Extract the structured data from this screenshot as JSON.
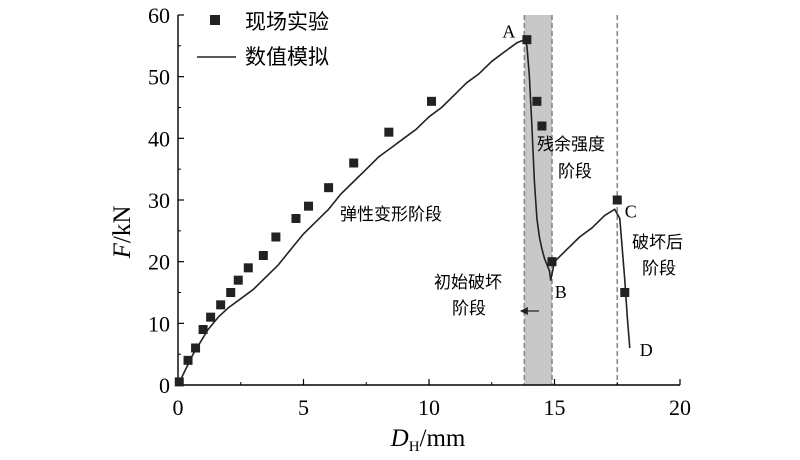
{
  "chart_data": {
    "type": "line",
    "xlabel": "D_H/mm",
    "xlabel_main": "D",
    "xlabel_sub": "H",
    "xlabel_unit": "/mm",
    "ylabel": "F/kN",
    "ylabel_italic": "F",
    "ylabel_unit": "/kN",
    "xlim": [
      0,
      20
    ],
    "ylim": [
      0,
      60
    ],
    "xticks": [
      "0",
      "5",
      "10",
      "15",
      "20"
    ],
    "yticks": [
      "0",
      "10",
      "20",
      "30",
      "40",
      "50",
      "60"
    ],
    "grid": false,
    "legend_position": "top-left",
    "series": [
      {
        "name": "现场实验",
        "style": "square-markers",
        "color": "#222222",
        "x": [
          0.05,
          0.4,
          0.7,
          1.0,
          1.3,
          1.7,
          2.1,
          2.4,
          2.8,
          3.4,
          3.9,
          4.7,
          5.2,
          6.0,
          7.0,
          8.4,
          10.1,
          13.9,
          14.3,
          14.5,
          14.9,
          17.5,
          17.8
        ],
        "y": [
          0.5,
          4,
          6,
          9,
          11,
          13,
          15,
          17,
          19,
          21,
          24,
          27,
          29,
          32,
          36,
          41,
          46,
          56,
          46,
          42,
          20,
          30,
          15
        ]
      },
      {
        "name": "数值模拟",
        "style": "line",
        "color": "#222222",
        "x": [
          0,
          0.3,
          0.6,
          0.9,
          1.2,
          1.6,
          2.0,
          2.5,
          3.0,
          3.5,
          4.0,
          4.5,
          5.0,
          5.5,
          6.0,
          6.5,
          7.0,
          7.5,
          8.0,
          8.5,
          9.0,
          9.5,
          10.0,
          10.5,
          11.0,
          11.5,
          12.0,
          12.5,
          13.0,
          13.5,
          13.8,
          13.9,
          14.0,
          14.1,
          14.2,
          14.3,
          14.4,
          14.5,
          14.6,
          14.7,
          14.8,
          14.85,
          14.9,
          15.0,
          15.5,
          16.0,
          16.5,
          17.0,
          17.4,
          17.6,
          17.7,
          17.8,
          17.9,
          18.0
        ],
        "y": [
          0,
          2.5,
          5,
          7,
          9,
          11,
          12.5,
          14,
          15.5,
          17.5,
          19.5,
          22,
          24.5,
          26.5,
          28.5,
          31,
          33,
          35,
          37,
          38.5,
          40,
          41.5,
          43.5,
          45,
          47,
          49,
          50.5,
          52.5,
          54,
          55.5,
          56,
          55,
          50,
          42,
          33,
          27,
          24,
          22,
          20.5,
          19.5,
          18.5,
          17,
          18,
          20,
          22,
          24,
          25.5,
          27.5,
          28.5,
          27,
          22,
          17,
          11,
          6
        ]
      }
    ],
    "points": [
      {
        "label": "A",
        "x": 13.8,
        "y": 56
      },
      {
        "label": "B",
        "x": 14.85,
        "y": 17
      },
      {
        "label": "C",
        "x": 17.4,
        "y": 28.5
      },
      {
        "label": "D",
        "x": 18.0,
        "y": 6
      }
    ],
    "shaded_region": {
      "x": [
        13.8,
        14.9
      ]
    },
    "vlines": [
      13.8,
      14.9,
      17.5
    ],
    "annotations": {
      "elastic": "弹性变形阶段",
      "residual_1": "残余强度",
      "residual_2": "阶段",
      "initial_1": "初始破坏",
      "initial_2": "阶段",
      "post_1": "破坏后",
      "post_2": "阶段"
    }
  }
}
